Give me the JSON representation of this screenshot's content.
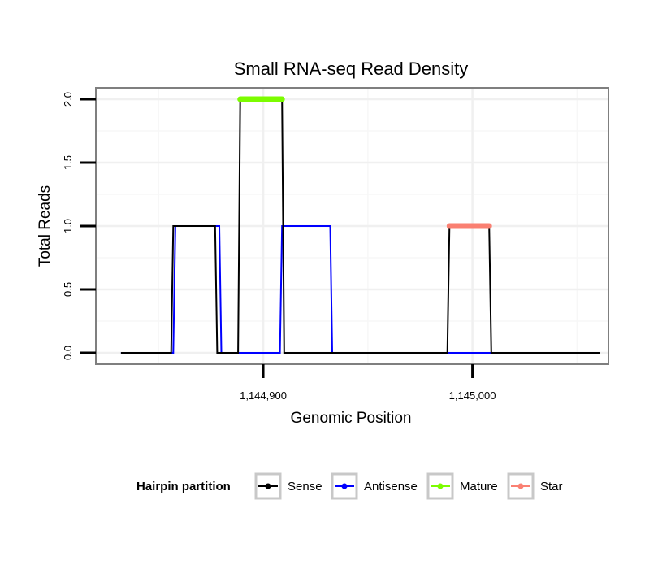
{
  "chart_data": {
    "type": "line",
    "title": "Small RNA-seq Read Density",
    "xlabel": "Genomic Position",
    "ylabel": "Total Reads",
    "xlim": [
      1144820,
      1145065
    ],
    "ylim": [
      -0.09,
      2.09
    ],
    "x_ticks": [
      1144900,
      1145000
    ],
    "x_tick_labels": [
      "1,144,900",
      "1,145,000"
    ],
    "y_ticks": [
      0.0,
      0.5,
      1.0,
      1.5,
      2.0
    ],
    "y_tick_labels": [
      "0.0",
      "0.5",
      "1.0",
      "1.5",
      "2.0"
    ],
    "grid": true,
    "legend": {
      "title": "Hairpin partition",
      "position": "bottom",
      "entries": [
        "Sense",
        "Antisense",
        "Mature",
        "Star"
      ]
    },
    "series": [
      {
        "name": "Antisense",
        "color": "#0000ff",
        "x": [
          1144832,
          1144857,
          1144858,
          1144879,
          1144880,
          1144898,
          1144908,
          1144909,
          1144932,
          1144933,
          1145061
        ],
        "y": [
          0,
          0,
          1,
          1,
          0,
          0,
          0,
          1,
          1,
          0,
          0
        ]
      },
      {
        "name": "Sense",
        "color": "#000000",
        "x": [
          1144832,
          1144856,
          1144857,
          1144877,
          1144878,
          1144888,
          1144889,
          1144909,
          1144910,
          1144988,
          1144989,
          1145008,
          1145009,
          1145061
        ],
        "y": [
          0,
          0,
          1,
          1,
          0,
          0,
          2,
          2,
          0,
          0,
          1,
          1,
          0,
          0
        ]
      },
      {
        "name": "Mature",
        "color": "#7cfc00",
        "x": [
          1144889,
          1144909
        ],
        "y": [
          2,
          2
        ]
      },
      {
        "name": "Star",
        "color": "#fa8072",
        "x": [
          1144989,
          1145008
        ],
        "y": [
          1,
          1
        ]
      }
    ]
  }
}
